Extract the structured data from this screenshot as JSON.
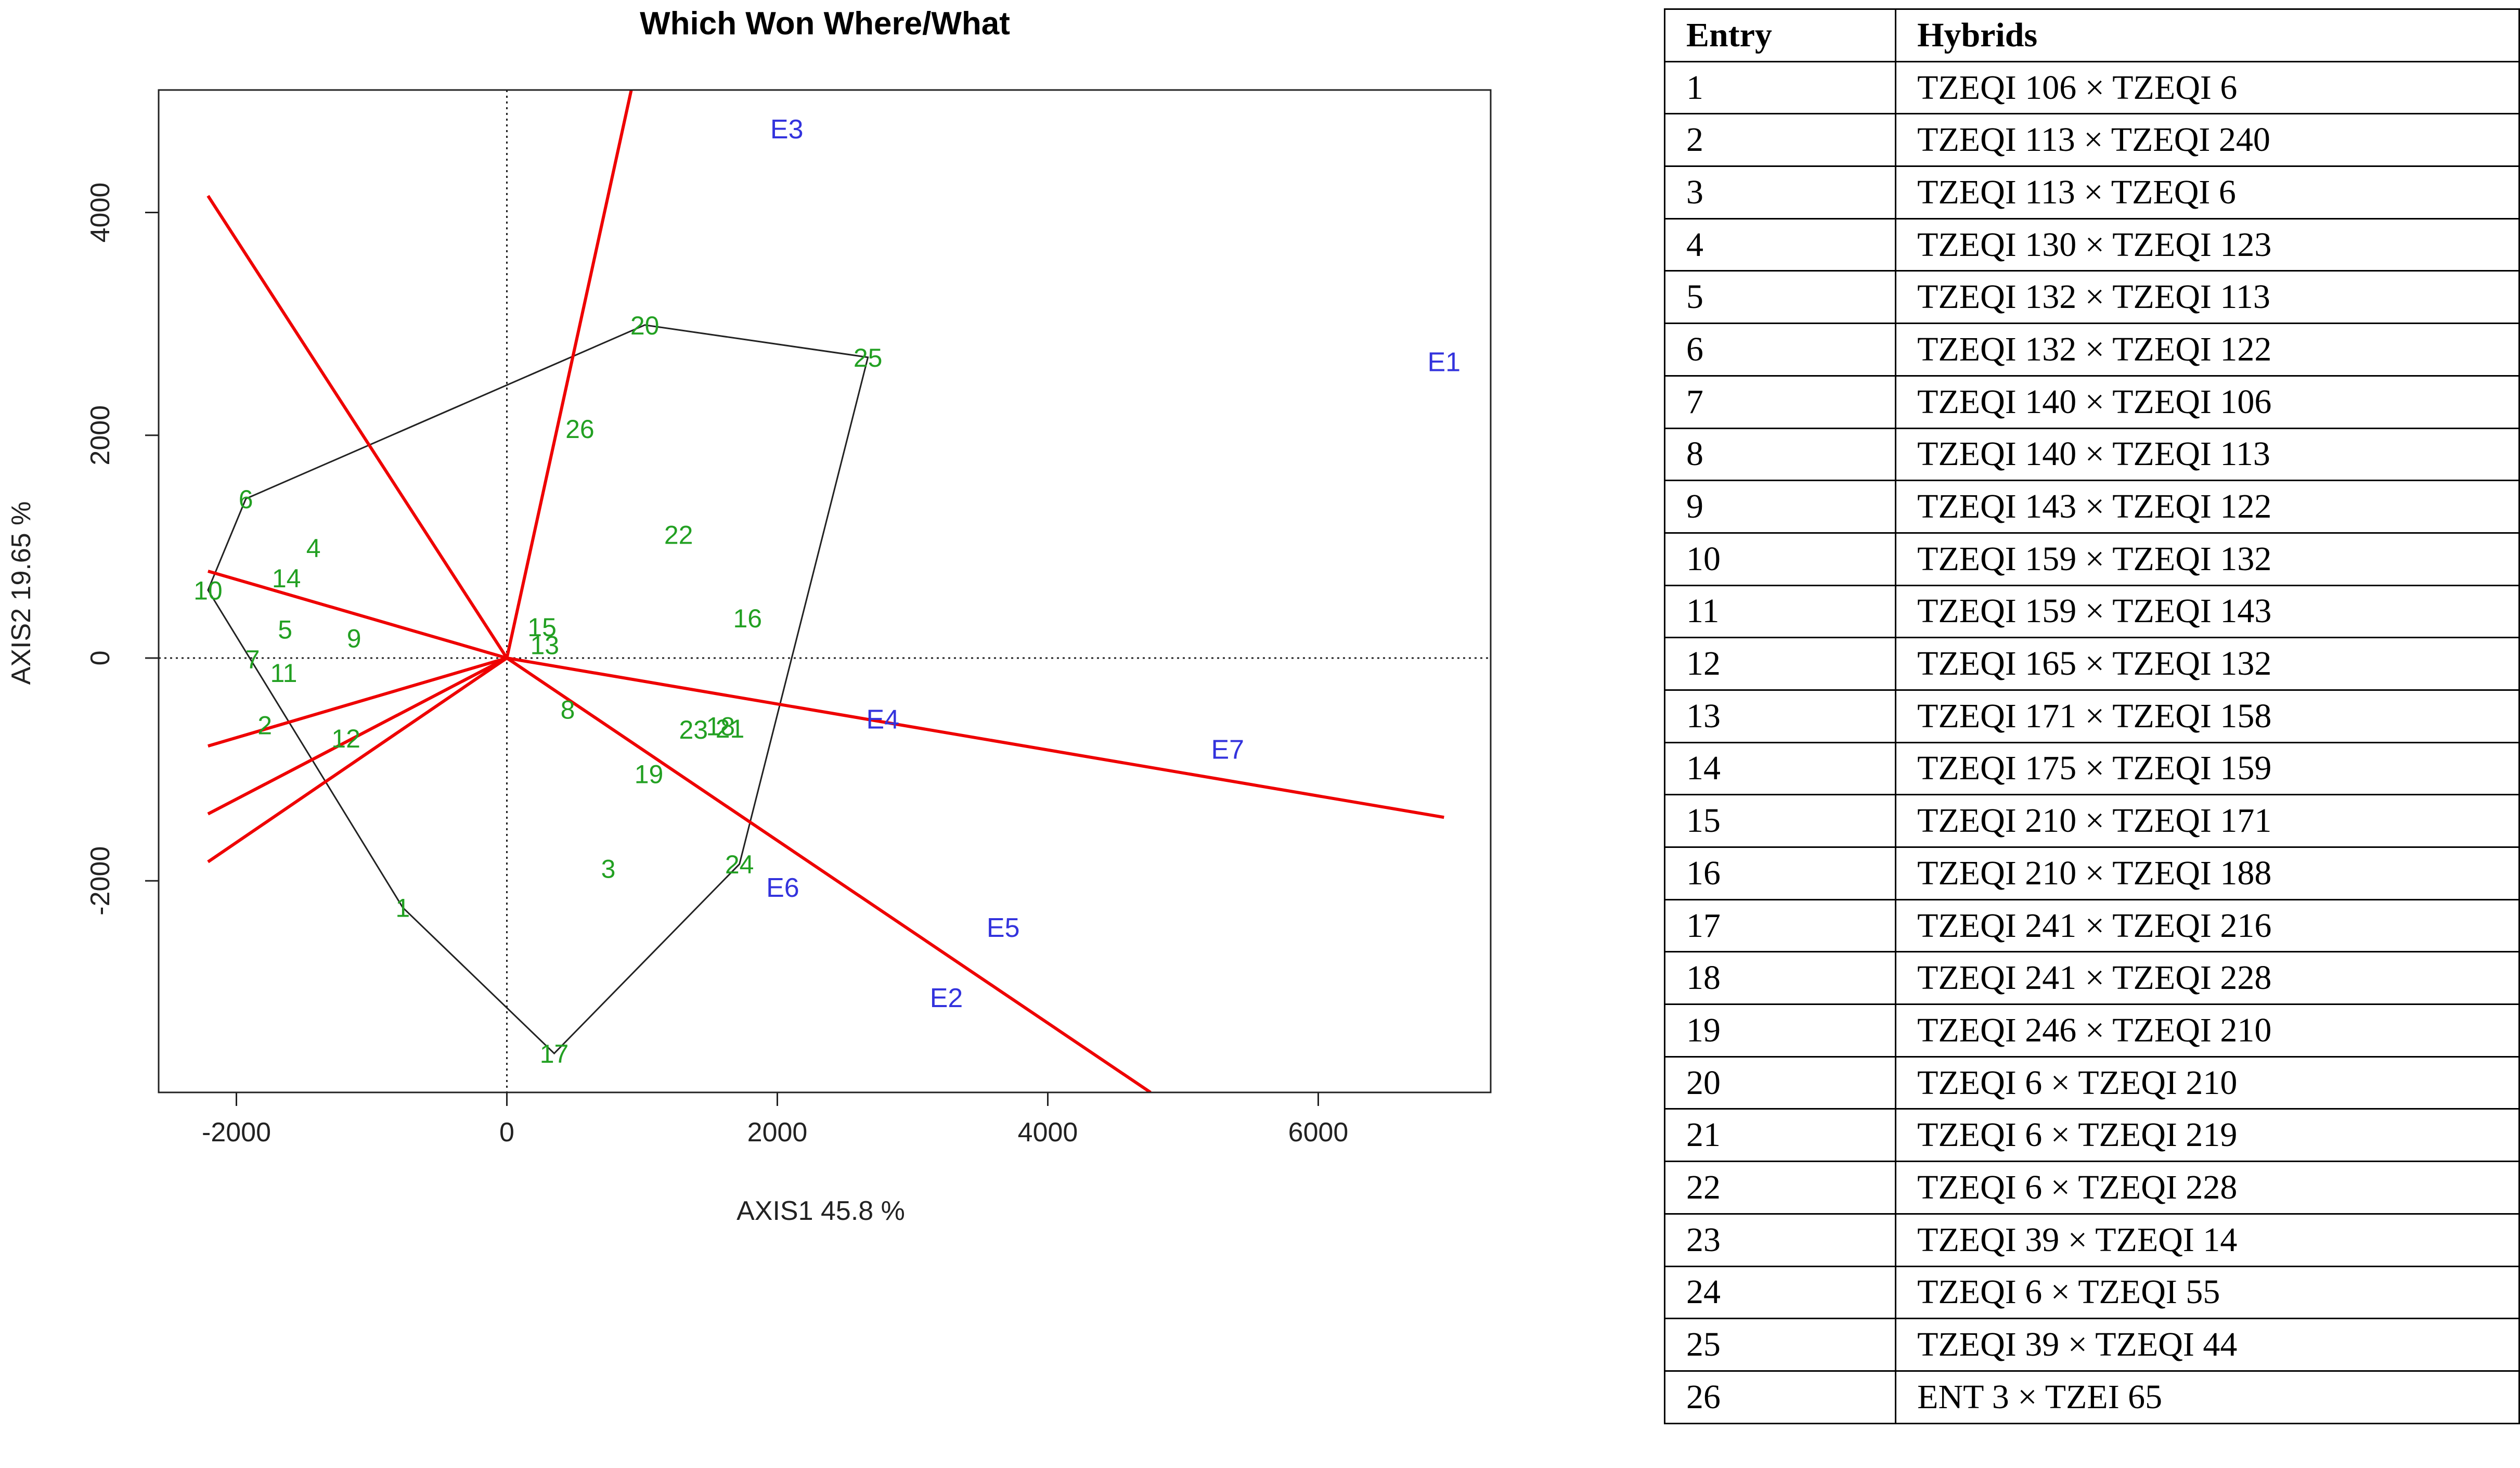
{
  "chart_data": {
    "type": "scatter",
    "title": "Which Won Where/What",
    "xlabel": "AXIS1 45.8 %",
    "ylabel": "AXIS2 19.65 %",
    "xlim": [
      -2575,
      7275
    ],
    "ylim": [
      -3900,
      5100
    ],
    "xticks": [
      -2000,
      0,
      2000,
      4000,
      6000
    ],
    "xtick_labels": [
      "-2000",
      "0",
      "2000",
      "4000",
      "6000"
    ],
    "yticks": [
      -2000,
      0,
      2000,
      4000
    ],
    "ytick_labels": [
      "-2000",
      "0",
      "2000",
      "4000"
    ],
    "grid": false,
    "genotype_color": "#22a022",
    "environment_color": "#3333dd",
    "ray_color": "#ee0000",
    "hull_color": "#222222",
    "genotypes": [
      {
        "label": "1",
        "x": -770,
        "y": -2240
      },
      {
        "label": "2",
        "x": -1790,
        "y": -600
      },
      {
        "label": "3",
        "x": 750,
        "y": -1890
      },
      {
        "label": "4",
        "x": -1430,
        "y": 990
      },
      {
        "label": "5",
        "x": -1640,
        "y": 260
      },
      {
        "label": "6",
        "x": -1930,
        "y": 1430
      },
      {
        "label": "7",
        "x": -1880,
        "y": -10
      },
      {
        "label": "8",
        "x": 450,
        "y": -460
      },
      {
        "label": "9",
        "x": -1130,
        "y": 180
      },
      {
        "label": "10",
        "x": -2210,
        "y": 610
      },
      {
        "label": "11",
        "x": -1650,
        "y": -130
      },
      {
        "label": "12",
        "x": -1190,
        "y": -720
      },
      {
        "label": "13",
        "x": 280,
        "y": 120
      },
      {
        "label": "14",
        "x": -1630,
        "y": 720
      },
      {
        "label": "15",
        "x": 260,
        "y": 280
      },
      {
        "label": "16",
        "x": 1780,
        "y": 360
      },
      {
        "label": "17",
        "x": 350,
        "y": -3550
      },
      {
        "label": "18",
        "x": 1580,
        "y": -610
      },
      {
        "label": "19",
        "x": 1050,
        "y": -1040
      },
      {
        "label": "20",
        "x": 1020,
        "y": 2990
      },
      {
        "label": "21",
        "x": 1650,
        "y": -630
      },
      {
        "label": "22",
        "x": 1270,
        "y": 1110
      },
      {
        "label": "23",
        "x": 1380,
        "y": -640
      },
      {
        "label": "24",
        "x": 1720,
        "y": -1850
      },
      {
        "label": "25",
        "x": 2670,
        "y": 2700
      },
      {
        "label": "26",
        "x": 540,
        "y": 2060
      }
    ],
    "environments": [
      {
        "label": "E1",
        "x": 6930,
        "y": 2660
      },
      {
        "label": "E2",
        "x": 3250,
        "y": -3050
      },
      {
        "label": "E3",
        "x": 2070,
        "y": 4750
      },
      {
        "label": "E4",
        "x": 2780,
        "y": -550
      },
      {
        "label": "E5",
        "x": 3670,
        "y": -2420
      },
      {
        "label": "E6",
        "x": 2040,
        "y": -2060
      },
      {
        "label": "E7",
        "x": 5330,
        "y": -820
      }
    ],
    "hull": [
      [
        -770,
        -2240
      ],
      [
        350,
        -3550
      ],
      [
        1720,
        -1850
      ],
      [
        2670,
        2700
      ],
      [
        1020,
        2990
      ],
      [
        -1930,
        1430
      ],
      [
        -2210,
        610
      ]
    ],
    "rays": [
      {
        "x": 920,
        "y": 5100
      },
      {
        "x": -2210,
        "y": 4150
      },
      {
        "x": -2210,
        "y": 780
      },
      {
        "x": -2210,
        "y": -790
      },
      {
        "x": -2210,
        "y": -1400
      },
      {
        "x": -2210,
        "y": -1830
      },
      {
        "x": 4760,
        "y": -3900
      },
      {
        "x": 6930,
        "y": -1430
      }
    ]
  },
  "table": {
    "headers": [
      "Entry",
      "Hybrids"
    ],
    "rows": [
      [
        "1",
        "TZEQI 106 × TZEQI 6"
      ],
      [
        "2",
        "TZEQI 113 × TZEQI 240"
      ],
      [
        "3",
        "TZEQI 113 × TZEQI 6"
      ],
      [
        "4",
        "TZEQI 130 × TZEQI 123"
      ],
      [
        "5",
        "TZEQI 132 × TZEQI 113"
      ],
      [
        "6",
        "TZEQI 132 × TZEQI 122"
      ],
      [
        "7",
        "TZEQI 140 × TZEQI 106"
      ],
      [
        "8",
        "TZEQI 140 × TZEQI 113"
      ],
      [
        "9",
        "TZEQI 143 × TZEQI 122"
      ],
      [
        "10",
        "TZEQI 159 × TZEQI 132"
      ],
      [
        "11",
        "TZEQI 159 × TZEQI 143"
      ],
      [
        "12",
        "TZEQI 165 × TZEQI 132"
      ],
      [
        "13",
        "TZEQI 171 × TZEQI 158"
      ],
      [
        "14",
        "TZEQI 175 × TZEQI 159"
      ],
      [
        "15",
        "TZEQI 210 × TZEQI 171"
      ],
      [
        "16",
        "TZEQI 210 × TZEQI 188"
      ],
      [
        "17",
        "TZEQI 241 × TZEQI 216"
      ],
      [
        "18",
        "TZEQI 241 × TZEQI 228"
      ],
      [
        "19",
        "TZEQI 246 × TZEQI 210"
      ],
      [
        "20",
        "TZEQI 6 × TZEQI 210"
      ],
      [
        "21",
        "TZEQI 6 × TZEQI 219"
      ],
      [
        "22",
        "TZEQI 6 × TZEQI 228"
      ],
      [
        "23",
        "TZEQI 39 × TZEQI 14"
      ],
      [
        "24",
        "TZEQI 6 × TZEQI 55"
      ],
      [
        "25",
        "TZEQI 39 × TZEQI 44"
      ],
      [
        "26",
        "ENT 3 × TZEI 65"
      ]
    ]
  }
}
